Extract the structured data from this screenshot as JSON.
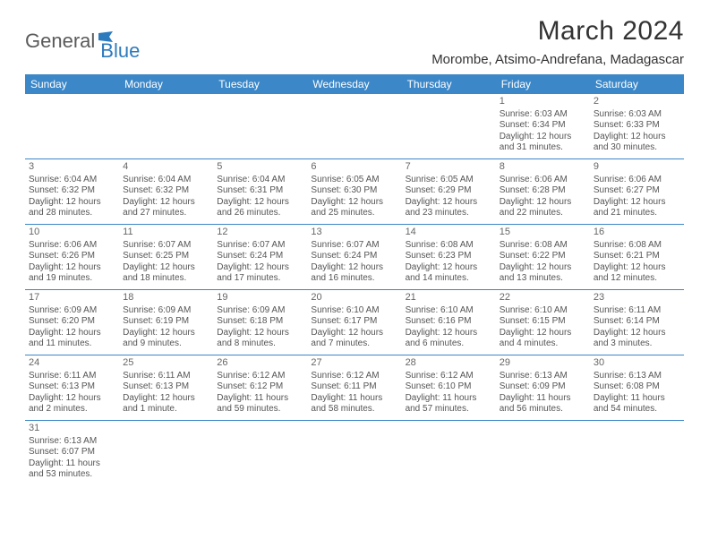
{
  "logo": {
    "general": "General",
    "blue": "Blue"
  },
  "title": "March 2024",
  "location": "Morombe, Atsimo-Andrefana, Madagascar",
  "colors": {
    "headerBg": "#3b87c8",
    "headerText": "#ffffff",
    "text": "#555555",
    "border": "#3b87c8",
    "logoGray": "#5a5a5a",
    "logoBlue": "#2d7bbd"
  },
  "weekdays": [
    "Sunday",
    "Monday",
    "Tuesday",
    "Wednesday",
    "Thursday",
    "Friday",
    "Saturday"
  ],
  "weeks": [
    [
      null,
      null,
      null,
      null,
      null,
      {
        "n": "1",
        "sr": "Sunrise: 6:03 AM",
        "ss": "Sunset: 6:34 PM",
        "d1": "Daylight: 12 hours",
        "d2": "and 31 minutes."
      },
      {
        "n": "2",
        "sr": "Sunrise: 6:03 AM",
        "ss": "Sunset: 6:33 PM",
        "d1": "Daylight: 12 hours",
        "d2": "and 30 minutes."
      }
    ],
    [
      {
        "n": "3",
        "sr": "Sunrise: 6:04 AM",
        "ss": "Sunset: 6:32 PM",
        "d1": "Daylight: 12 hours",
        "d2": "and 28 minutes."
      },
      {
        "n": "4",
        "sr": "Sunrise: 6:04 AM",
        "ss": "Sunset: 6:32 PM",
        "d1": "Daylight: 12 hours",
        "d2": "and 27 minutes."
      },
      {
        "n": "5",
        "sr": "Sunrise: 6:04 AM",
        "ss": "Sunset: 6:31 PM",
        "d1": "Daylight: 12 hours",
        "d2": "and 26 minutes."
      },
      {
        "n": "6",
        "sr": "Sunrise: 6:05 AM",
        "ss": "Sunset: 6:30 PM",
        "d1": "Daylight: 12 hours",
        "d2": "and 25 minutes."
      },
      {
        "n": "7",
        "sr": "Sunrise: 6:05 AM",
        "ss": "Sunset: 6:29 PM",
        "d1": "Daylight: 12 hours",
        "d2": "and 23 minutes."
      },
      {
        "n": "8",
        "sr": "Sunrise: 6:06 AM",
        "ss": "Sunset: 6:28 PM",
        "d1": "Daylight: 12 hours",
        "d2": "and 22 minutes."
      },
      {
        "n": "9",
        "sr": "Sunrise: 6:06 AM",
        "ss": "Sunset: 6:27 PM",
        "d1": "Daylight: 12 hours",
        "d2": "and 21 minutes."
      }
    ],
    [
      {
        "n": "10",
        "sr": "Sunrise: 6:06 AM",
        "ss": "Sunset: 6:26 PM",
        "d1": "Daylight: 12 hours",
        "d2": "and 19 minutes."
      },
      {
        "n": "11",
        "sr": "Sunrise: 6:07 AM",
        "ss": "Sunset: 6:25 PM",
        "d1": "Daylight: 12 hours",
        "d2": "and 18 minutes."
      },
      {
        "n": "12",
        "sr": "Sunrise: 6:07 AM",
        "ss": "Sunset: 6:24 PM",
        "d1": "Daylight: 12 hours",
        "d2": "and 17 minutes."
      },
      {
        "n": "13",
        "sr": "Sunrise: 6:07 AM",
        "ss": "Sunset: 6:24 PM",
        "d1": "Daylight: 12 hours",
        "d2": "and 16 minutes."
      },
      {
        "n": "14",
        "sr": "Sunrise: 6:08 AM",
        "ss": "Sunset: 6:23 PM",
        "d1": "Daylight: 12 hours",
        "d2": "and 14 minutes."
      },
      {
        "n": "15",
        "sr": "Sunrise: 6:08 AM",
        "ss": "Sunset: 6:22 PM",
        "d1": "Daylight: 12 hours",
        "d2": "and 13 minutes."
      },
      {
        "n": "16",
        "sr": "Sunrise: 6:08 AM",
        "ss": "Sunset: 6:21 PM",
        "d1": "Daylight: 12 hours",
        "d2": "and 12 minutes."
      }
    ],
    [
      {
        "n": "17",
        "sr": "Sunrise: 6:09 AM",
        "ss": "Sunset: 6:20 PM",
        "d1": "Daylight: 12 hours",
        "d2": "and 11 minutes."
      },
      {
        "n": "18",
        "sr": "Sunrise: 6:09 AM",
        "ss": "Sunset: 6:19 PM",
        "d1": "Daylight: 12 hours",
        "d2": "and 9 minutes."
      },
      {
        "n": "19",
        "sr": "Sunrise: 6:09 AM",
        "ss": "Sunset: 6:18 PM",
        "d1": "Daylight: 12 hours",
        "d2": "and 8 minutes."
      },
      {
        "n": "20",
        "sr": "Sunrise: 6:10 AM",
        "ss": "Sunset: 6:17 PM",
        "d1": "Daylight: 12 hours",
        "d2": "and 7 minutes."
      },
      {
        "n": "21",
        "sr": "Sunrise: 6:10 AM",
        "ss": "Sunset: 6:16 PM",
        "d1": "Daylight: 12 hours",
        "d2": "and 6 minutes."
      },
      {
        "n": "22",
        "sr": "Sunrise: 6:10 AM",
        "ss": "Sunset: 6:15 PM",
        "d1": "Daylight: 12 hours",
        "d2": "and 4 minutes."
      },
      {
        "n": "23",
        "sr": "Sunrise: 6:11 AM",
        "ss": "Sunset: 6:14 PM",
        "d1": "Daylight: 12 hours",
        "d2": "and 3 minutes."
      }
    ],
    [
      {
        "n": "24",
        "sr": "Sunrise: 6:11 AM",
        "ss": "Sunset: 6:13 PM",
        "d1": "Daylight: 12 hours",
        "d2": "and 2 minutes."
      },
      {
        "n": "25",
        "sr": "Sunrise: 6:11 AM",
        "ss": "Sunset: 6:13 PM",
        "d1": "Daylight: 12 hours",
        "d2": "and 1 minute."
      },
      {
        "n": "26",
        "sr": "Sunrise: 6:12 AM",
        "ss": "Sunset: 6:12 PM",
        "d1": "Daylight: 11 hours",
        "d2": "and 59 minutes."
      },
      {
        "n": "27",
        "sr": "Sunrise: 6:12 AM",
        "ss": "Sunset: 6:11 PM",
        "d1": "Daylight: 11 hours",
        "d2": "and 58 minutes."
      },
      {
        "n": "28",
        "sr": "Sunrise: 6:12 AM",
        "ss": "Sunset: 6:10 PM",
        "d1": "Daylight: 11 hours",
        "d2": "and 57 minutes."
      },
      {
        "n": "29",
        "sr": "Sunrise: 6:13 AM",
        "ss": "Sunset: 6:09 PM",
        "d1": "Daylight: 11 hours",
        "d2": "and 56 minutes."
      },
      {
        "n": "30",
        "sr": "Sunrise: 6:13 AM",
        "ss": "Sunset: 6:08 PM",
        "d1": "Daylight: 11 hours",
        "d2": "and 54 minutes."
      }
    ],
    [
      {
        "n": "31",
        "sr": "Sunrise: 6:13 AM",
        "ss": "Sunset: 6:07 PM",
        "d1": "Daylight: 11 hours",
        "d2": "and 53 minutes."
      },
      null,
      null,
      null,
      null,
      null,
      null
    ]
  ]
}
